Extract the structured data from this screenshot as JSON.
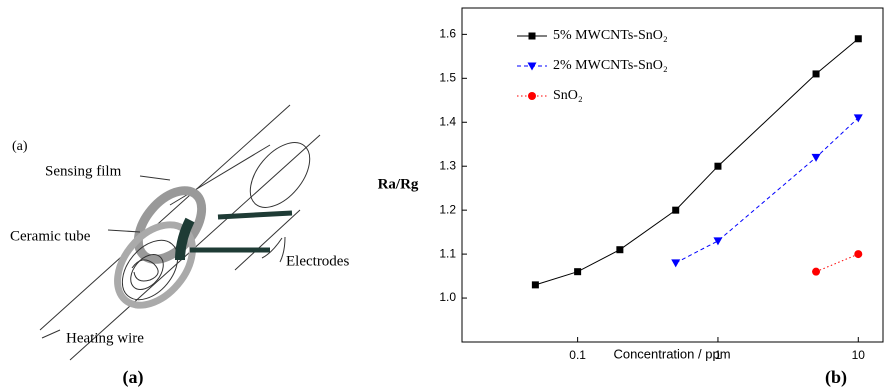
{
  "diagram": {
    "panel_label": "(a)",
    "labels": [
      "Sensing film",
      "Ceramic tube",
      "Electrodes",
      "Heating wire"
    ]
  },
  "captions": [
    "(a)",
    "(b)"
  ],
  "chart_data": {
    "type": "line",
    "y_label": "Ra/Rg",
    "x_label": "Concentration / ppm",
    "xscale": "log",
    "xlim": [
      0.015,
      15
    ],
    "xticks": [
      0.1,
      1,
      10
    ],
    "ylim": [
      0.9,
      1.66
    ],
    "yticks": [
      {
        "value": 1,
        "label": "1.0"
      },
      1.1,
      1.2,
      1.3,
      1.4,
      1.5,
      1.6
    ],
    "legend": "top-left",
    "series": [
      {
        "name": "5% MWCNTs-SnO₂",
        "color": "#000000",
        "marker": "square",
        "dash": "solid",
        "x": [
          0.05,
          0.1,
          0.2,
          0.5,
          1,
          5,
          10
        ],
        "values": [
          1.03,
          1.06,
          1.11,
          1.2,
          1.3,
          1.51,
          1.59
        ]
      },
      {
        "name": "2% MWCNTs-SnO₂",
        "color": "#0000ff",
        "marker": "triangle-down",
        "dash": "dashed",
        "x": [
          0.5,
          1,
          5,
          10
        ],
        "values": [
          1.08,
          1.13,
          1.32,
          1.41
        ]
      },
      {
        "name": "SnO₂",
        "color": "#ff0000",
        "marker": "circle",
        "dash": "dotted",
        "x": [
          5,
          10
        ],
        "values": [
          1.06,
          1.1
        ]
      }
    ]
  }
}
